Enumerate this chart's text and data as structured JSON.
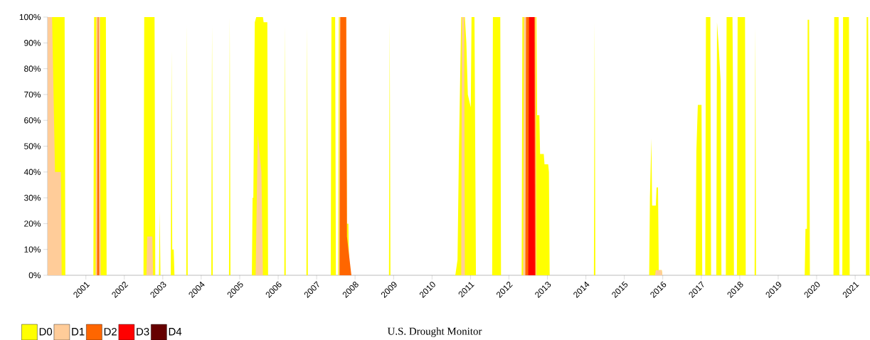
{
  "chart_data": {
    "type": "area",
    "xlim": [
      "2000-01-04",
      "2021-05-22"
    ],
    "ylim": [
      0,
      100
    ],
    "xticks": [
      {
        "value": "2001-01-01",
        "label": "2001"
      },
      {
        "value": "2002-01-01",
        "label": "2002"
      },
      {
        "value": "2003-01-01",
        "label": "2003"
      },
      {
        "value": "2004-01-01",
        "label": "2004"
      },
      {
        "value": "2005-01-01",
        "label": "2005"
      },
      {
        "value": "2006-01-01",
        "label": "2006"
      },
      {
        "value": "2007-01-01",
        "label": "2007"
      },
      {
        "value": "2008-01-01",
        "label": "2008"
      },
      {
        "value": "2009-01-01",
        "label": "2009"
      },
      {
        "value": "2010-01-01",
        "label": "2010"
      },
      {
        "value": "2011-01-01",
        "label": "2011"
      },
      {
        "value": "2012-01-01",
        "label": "2012"
      },
      {
        "value": "2013-01-01",
        "label": "2013"
      },
      {
        "value": "2014-01-01",
        "label": "2014"
      },
      {
        "value": "2015-01-01",
        "label": "2015"
      },
      {
        "value": "2016-01-01",
        "label": "2016"
      },
      {
        "value": "2017-01-01",
        "label": "2017"
      },
      {
        "value": "2018-01-01",
        "label": "2018"
      },
      {
        "value": "2019-01-01",
        "label": "2019"
      },
      {
        "value": "2020-01-01",
        "label": "2020"
      },
      {
        "value": "2021-01-01",
        "label": "2021"
      }
    ],
    "yticks": [
      {
        "value": 0,
        "label": "0%"
      },
      {
        "value": 10,
        "label": "10%"
      },
      {
        "value": 20,
        "label": "20%"
      },
      {
        "value": 30,
        "label": "30%"
      },
      {
        "value": 40,
        "label": "40%"
      },
      {
        "value": 50,
        "label": "50%"
      },
      {
        "value": 60,
        "label": "60%"
      },
      {
        "value": 70,
        "label": "70%"
      },
      {
        "value": 80,
        "label": "80%"
      },
      {
        "value": 90,
        "label": "90%"
      },
      {
        "value": 100,
        "label": "100%"
      }
    ],
    "legend": "bottom left",
    "annotations": [
      "U.S. Drought Monitor"
    ],
    "series": [
      {
        "name": "D0",
        "color": "#ffff00",
        "x": [
          "2000-01-04",
          "2000-01-04",
          "2000-06-13",
          "2000-06-20",
          "2001-03-13",
          "2001-03-20",
          "2001-07-10",
          "2001-07-17",
          "2002-07-02",
          "2002-07-09",
          "2002-10-15",
          "2002-10-22",
          "2002-11-26",
          "2002-12-03",
          "2002-12-10",
          "2003-03-18",
          "2003-03-25",
          "2003-04-01",
          "2003-04-15",
          "2003-04-22",
          "2003-08-12",
          "2003-08-19",
          "2003-08-26",
          "2004-04-06",
          "2004-04-13",
          "2004-04-20",
          "2004-09-21",
          "2004-09-28",
          "2004-10-05",
          "2005-04-26",
          "2005-05-03",
          "2005-05-10",
          "2005-05-24",
          "2005-06-07",
          "2005-08-09",
          "2005-08-16",
          "2005-09-20",
          "2005-09-27",
          "2006-02-28",
          "2006-03-07",
          "2006-03-14",
          "2006-09-26",
          "2006-10-03",
          "2006-10-10",
          "2007-05-15",
          "2007-05-22",
          "2007-06-26",
          "2007-07-03",
          "2007-07-24",
          "2007-07-31",
          "2007-10-09",
          "2007-10-16",
          "2007-10-30",
          "2007-11-06",
          "2008-11-18",
          "2008-11-25",
          "2008-12-02",
          "2010-08-10",
          "2010-08-31",
          "2010-09-14",
          "2010-10-05",
          "2010-11-09",
          "2010-11-23",
          "2010-12-07",
          "2011-01-04",
          "2011-01-11",
          "2011-02-08",
          "2011-02-22",
          "2011-07-26",
          "2011-08-02",
          "2011-10-11",
          "2011-10-18",
          "2012-05-01",
          "2012-05-08",
          "2012-09-18",
          "2012-09-25",
          "2012-10-16",
          "2012-10-23",
          "2012-11-27",
          "2012-12-04",
          "2013-01-08",
          "2013-01-15",
          "2013-01-22",
          "2014-03-18",
          "2014-03-25",
          "2014-04-01",
          "2015-08-25",
          "2015-09-01",
          "2015-09-15",
          "2015-09-22",
          "2015-10-27",
          "2015-11-03",
          "2015-11-17",
          "2015-11-24",
          "2015-12-22",
          "2015-12-29",
          "2016-11-08",
          "2016-11-15",
          "2016-11-29",
          "2017-01-03",
          "2017-01-10",
          "2017-02-07",
          "2017-02-14",
          "2017-03-28",
          "2017-04-04",
          "2017-05-23",
          "2017-05-30",
          "2017-06-13",
          "2017-07-04",
          "2017-07-11",
          "2017-08-22",
          "2017-08-29",
          "2017-10-24",
          "2017-10-31",
          "2017-11-07",
          "2017-12-05",
          "2017-12-12",
          "2018-02-20",
          "2018-02-27",
          "2018-05-22",
          "2018-05-29",
          "2018-06-05",
          "2019-09-10",
          "2019-09-17",
          "2019-10-01",
          "2019-10-08",
          "2019-10-22",
          "2019-10-29",
          "2020-06-09",
          "2020-06-16",
          "2020-07-28",
          "2020-08-04",
          "2020-09-01",
          "2020-09-08",
          "2020-11-03",
          "2020-11-10",
          "2021-04-13",
          "2021-04-20",
          "2021-05-04",
          "2021-05-11",
          "2021-05-18",
          "2021-05-18"
        ],
        "values": [
          0,
          100,
          100,
          0,
          0,
          100,
          100,
          0,
          0,
          100,
          100,
          0,
          0,
          25,
          0,
          0,
          87,
          10,
          10,
          0,
          0,
          97,
          0,
          0,
          97,
          0,
          0,
          100,
          0,
          0,
          30,
          30,
          98,
          100,
          100,
          98,
          98,
          0,
          0,
          97,
          0,
          0,
          96,
          0,
          0,
          100,
          100,
          0,
          0,
          100,
          100,
          20,
          20,
          0,
          0,
          98,
          0,
          0,
          6,
          50,
          100,
          100,
          90,
          70,
          65,
          100,
          100,
          0,
          0,
          100,
          100,
          0,
          0,
          100,
          100,
          62,
          62,
          47,
          47,
          43,
          43,
          40,
          0,
          0,
          98,
          0,
          0,
          30,
          53,
          27,
          27,
          34,
          34,
          2,
          2,
          0,
          0,
          48,
          66,
          66,
          0,
          0,
          100,
          100,
          0,
          0,
          98,
          90,
          75,
          0,
          0,
          100,
          100,
          62,
          0,
          0,
          100,
          100,
          0,
          0,
          96,
          0,
          0,
          18,
          18,
          99,
          99,
          0,
          0,
          100,
          100,
          0,
          0,
          100,
          100,
          0,
          0,
          100,
          100,
          52,
          52,
          0
        ]
      },
      {
        "name": "D1",
        "color": "#ffcc99",
        "x": [
          "2000-01-04",
          "2000-01-04",
          "2000-02-15",
          "2000-03-14",
          "2000-05-09",
          "2000-05-16",
          "2001-04-03",
          "2001-04-10",
          "2001-05-15",
          "2001-05-22",
          "2002-07-30",
          "2002-08-06",
          "2002-09-24",
          "2002-10-01",
          "2005-06-01",
          "2005-06-21",
          "2005-07-26",
          "2005-08-09",
          "2007-07-31",
          "2007-08-07",
          "2007-10-09",
          "2007-10-16",
          "2010-10-05",
          "2010-10-12",
          "2010-11-02",
          "2010-11-09",
          "2012-05-15",
          "2012-05-22",
          "2012-09-11",
          "2012-09-18",
          "2015-10-20",
          "2015-10-27",
          "2015-12-22",
          "2015-12-29"
        ],
        "values": [
          0,
          100,
          100,
          40,
          40,
          0,
          0,
          100,
          100,
          0,
          0,
          15,
          15,
          0,
          0,
          55,
          40,
          0,
          0,
          100,
          100,
          0,
          0,
          100,
          100,
          0,
          0,
          100,
          100,
          0,
          0,
          2,
          2,
          0
        ]
      },
      {
        "name": "D2",
        "color": "#ff6600",
        "x": [
          "2001-04-17",
          "2001-04-24",
          "2001-05-01",
          "2001-05-08",
          "2007-08-07",
          "2007-08-14",
          "2007-10-09",
          "2007-10-16",
          "2007-11-27",
          "2012-06-05",
          "2012-06-12",
          "2012-09-04",
          "2012-09-11"
        ],
        "values": [
          0,
          100,
          100,
          0,
          0,
          100,
          100,
          15,
          0,
          0,
          100,
          100,
          0
        ]
      },
      {
        "name": "D3",
        "color": "#ff0000",
        "x": [
          "2012-07-03",
          "2012-07-10",
          "2012-08-28",
          "2012-09-04"
        ],
        "values": [
          0,
          100,
          100,
          0
        ]
      },
      {
        "name": "D4",
        "color": "#660000"
      }
    ]
  }
}
